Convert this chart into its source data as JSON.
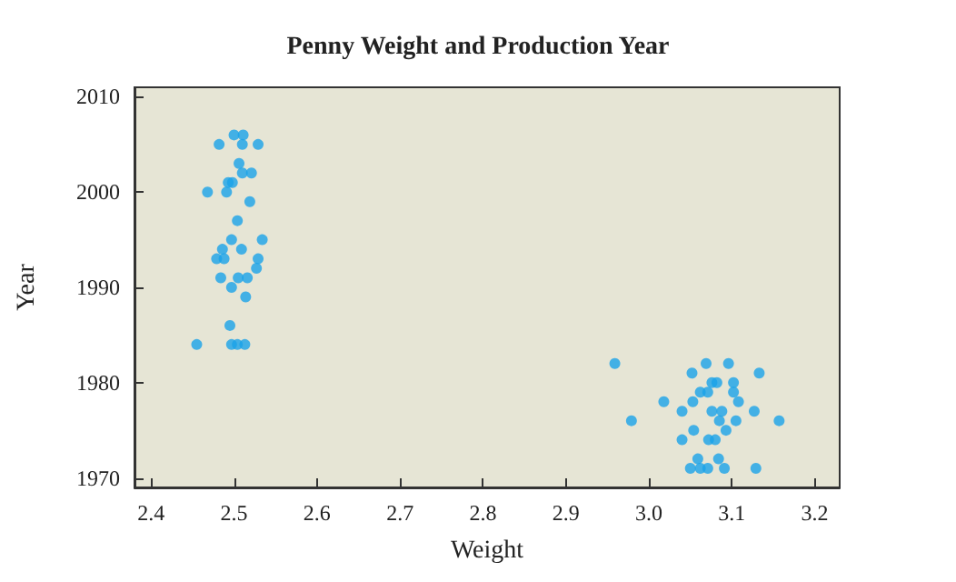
{
  "chart_data": {
    "type": "scatter",
    "title": "Penny Weight and Production Year",
    "xlabel": "Weight",
    "ylabel": "Year",
    "marker": "circle",
    "grid": false,
    "xlim": [
      2.38,
      3.23
    ],
    "ylim": [
      1969,
      2011
    ],
    "xticks": [
      {
        "value": 2.4,
        "label": "2.4"
      },
      {
        "value": 2.5,
        "label": "2.5"
      },
      {
        "value": 2.6,
        "label": "2.6"
      },
      {
        "value": 2.7,
        "label": "2.7"
      },
      {
        "value": 2.8,
        "label": "2.8"
      },
      {
        "value": 2.9,
        "label": "2.9"
      },
      {
        "value": 3.0,
        "label": "3.0"
      },
      {
        "value": 3.1,
        "label": "3.1"
      },
      {
        "value": 3.2,
        "label": "3.2"
      }
    ],
    "yticks": [
      1970,
      1980,
      1990,
      2000,
      2010
    ],
    "series": [
      {
        "color": "#1aa3e8",
        "x": [
          2.5,
          2.511,
          2.482,
          2.51,
          2.529,
          2.506,
          2.51,
          2.521,
          2.493,
          2.498,
          2.468,
          2.491,
          2.519,
          2.504,
          2.497,
          2.534,
          2.486,
          2.509,
          2.479,
          2.488,
          2.529,
          2.484,
          2.505,
          2.516,
          2.527,
          2.497,
          2.514,
          2.495,
          2.455,
          2.497,
          2.504,
          2.513,
          2.959,
          3.069,
          3.096,
          3.052,
          3.133,
          3.076,
          3.082,
          3.102,
          3.062,
          3.071,
          3.102,
          3.018,
          3.053,
          3.108,
          3.04,
          3.076,
          3.088,
          3.127,
          2.979,
          3.085,
          3.105,
          3.157,
          3.054,
          3.093,
          3.04,
          3.072,
          3.08,
          3.059,
          3.084,
          3.05,
          3.062,
          3.071,
          3.091,
          3.129
        ],
        "values": [
          2006,
          2006,
          2005,
          2005,
          2005,
          2003,
          2002,
          2002,
          2001,
          2001,
          2000,
          2000,
          1999,
          1997,
          1995,
          1995,
          1994,
          1994,
          1993,
          1993,
          1993,
          1991,
          1991,
          1991,
          1992,
          1990,
          1989,
          1986,
          1984,
          1984,
          1984,
          1984,
          1982,
          1982,
          1982,
          1981,
          1981,
          1980,
          1980,
          1980,
          1979,
          1979,
          1979,
          1978,
          1978,
          1978,
          1977,
          1977,
          1977,
          1977,
          1976,
          1976,
          1976,
          1976,
          1975,
          1975,
          1974,
          1974,
          1974,
          1972,
          1972,
          1971,
          1971,
          1971,
          1971,
          1971
        ]
      }
    ]
  }
}
